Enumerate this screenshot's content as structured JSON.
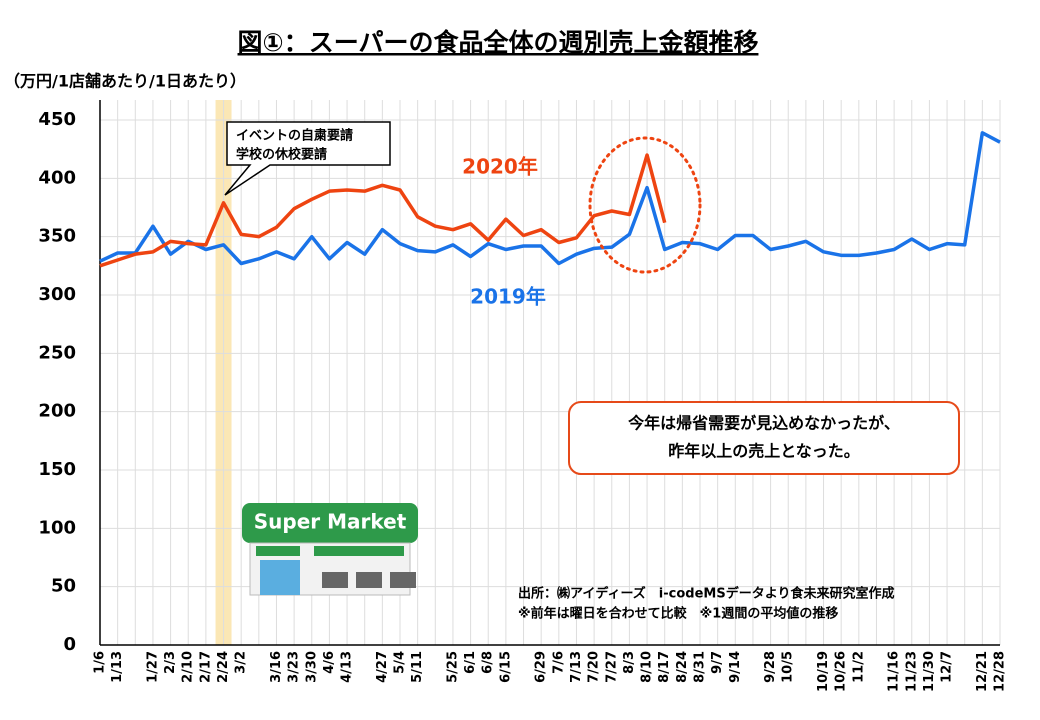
{
  "chart_data": {
    "type": "line",
    "title": "図①：スーパーの食品全体の週別売上金額推移",
    "y_label": "（万円/1店舗あたり/1日あたり）",
    "categories": [
      "1/6",
      "1/13",
      null,
      "1/27",
      "2/3",
      "2/10",
      "2/17",
      "2/24",
      "3/2",
      null,
      "3/16",
      "3/23",
      "3/30",
      "4/6",
      "4/13",
      null,
      "4/27",
      "5/4",
      "5/11",
      null,
      "5/25",
      "6/1",
      "6/8",
      "6/15",
      null,
      "6/29",
      "7/6",
      "7/13",
      "7/20",
      "7/27",
      "8/3",
      "8/10",
      "8/17",
      "8/24",
      "8/31",
      "9/7",
      "9/14",
      null,
      "9/28",
      "10/5",
      null,
      "10/19",
      "10/26",
      "11/2",
      null,
      "11/16",
      "11/23",
      "11/30",
      "12/7",
      null,
      "12/21",
      "12/28"
    ],
    "series": [
      {
        "name": "2020年",
        "color": "#ee4411",
        "values": [
          325,
          330,
          335,
          337,
          346,
          344,
          343,
          379,
          352,
          350,
          358,
          374,
          382,
          389,
          390,
          389,
          394,
          390,
          367,
          359,
          356,
          361,
          347,
          365,
          351,
          356,
          345,
          349,
          368,
          372,
          369,
          420,
          362,
          null,
          null,
          null,
          null,
          null,
          null,
          null,
          null,
          null,
          null,
          null,
          null,
          null,
          null,
          null,
          null,
          null,
          null,
          null
        ]
      },
      {
        "name": "2019年",
        "color": "#1a73e8",
        "values": [
          329,
          336,
          336,
          359,
          335,
          346,
          339,
          343,
          327,
          331,
          337,
          331,
          350,
          331,
          345,
          335,
          356,
          344,
          338,
          337,
          343,
          333,
          344,
          339,
          342,
          342,
          327,
          335,
          340,
          341,
          352,
          392,
          339,
          345,
          344,
          339,
          351,
          351,
          339,
          342,
          346,
          337,
          334,
          334,
          336,
          339,
          348,
          339,
          344,
          343,
          439,
          431
        ]
      }
    ],
    "ylim": [
      0,
      450
    ],
    "yticks": [
      0,
      50,
      100,
      150,
      200,
      250,
      300,
      350,
      400,
      450
    ],
    "grid": true,
    "callout": [
      "イベントの自粛要請",
      "学校の休校要請"
    ],
    "message": [
      "今年は帰省需要が見込めなかったが、",
      "昨年以上の売上となった。"
    ],
    "illustration_text": "Super Market",
    "notes": [
      "出所：㈱アイディーズ　i-codeMSデータより食未来研究室作成",
      "※前年は曜日を合わせて比較　※1週間の平均値の推移"
    ]
  }
}
